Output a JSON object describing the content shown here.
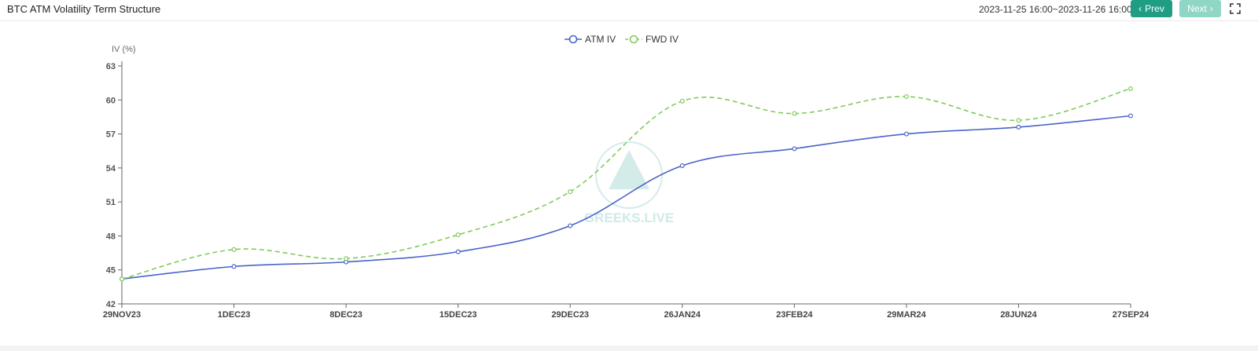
{
  "header": {
    "title": "BTC ATM Volatility Term Structure",
    "range": "2023-11-25 16:00~2023-11-26 16:00",
    "prev_label": "Prev",
    "next_label": "Next"
  },
  "watermark": {
    "text": "GREEKS.LIVE"
  },
  "colors": {
    "atm": "#4a63c8",
    "fwd": "#7fcb5a",
    "prev_btn": "#1f9e84",
    "next_btn": "#8fd6c7"
  },
  "chart_data": {
    "type": "line",
    "title": "",
    "ylabel": "IV (%)",
    "xlabel": "",
    "categories": [
      "29NOV23",
      "1DEC23",
      "8DEC23",
      "15DEC23",
      "29DEC23",
      "26JAN24",
      "23FEB24",
      "29MAR24",
      "28JUN24",
      "27SEP24"
    ],
    "ylim": [
      42,
      63
    ],
    "yticks": [
      42,
      45,
      48,
      51,
      54,
      57,
      60,
      63
    ],
    "legend": "top-center",
    "grid": false,
    "series": [
      {
        "name": "ATM IV",
        "style": "solid",
        "values": [
          44.2,
          45.3,
          45.7,
          46.6,
          48.9,
          54.2,
          55.7,
          57.0,
          57.6,
          58.6
        ]
      },
      {
        "name": "FWD IV",
        "style": "dashed",
        "values": [
          44.2,
          46.8,
          46.0,
          48.1,
          51.9,
          59.9,
          58.8,
          60.3,
          58.2,
          61.0
        ]
      }
    ]
  }
}
